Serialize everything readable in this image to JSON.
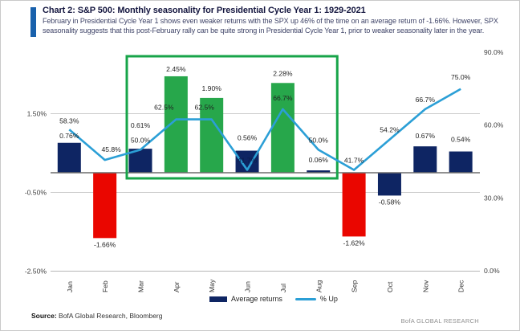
{
  "header": {
    "title": "Chart 2: S&P 500: Monthly seasonality for Presidential Cycle Year 1: 1929-2021",
    "subtitle": "February in Presidential Cycle Year 1 shows even weaker returns with the SPX up 46% of the time on an average return of -1.66%. However, SPX seasonality suggests that this post-February rally can be quite strong in Presidential Cycle Year 1, prior to weaker seasonality later in the year."
  },
  "chart_data": {
    "type": "combo",
    "title": "S&P 500: Monthly seasonality for Presidential Cycle Year 1: 1929-2021",
    "categories": [
      "Jan",
      "Feb",
      "Mar",
      "Apr",
      "May",
      "Jun",
      "Jul",
      "Aug",
      "Sep",
      "Oct",
      "Nov",
      "Dec"
    ],
    "series": [
      {
        "name": "Average returns",
        "chart_type": "bar",
        "axis": "left",
        "unit": "%",
        "values": [
          0.76,
          -1.66,
          0.61,
          2.45,
          1.9,
          0.56,
          2.28,
          0.06,
          -1.62,
          -0.58,
          0.67,
          0.54
        ],
        "labels": [
          "0.76%",
          "-1.66%",
          "0.61%",
          "2.45%",
          "1.90%",
          "0.56%",
          "2.28%",
          "0.06%",
          "-1.62%",
          "-0.58%",
          "0.67%",
          "0.54%"
        ],
        "bar_colors": [
          "navy",
          "red",
          "navy",
          "green",
          "green",
          "navy",
          "green",
          "navy",
          "red",
          "navy",
          "navy",
          "navy"
        ]
      },
      {
        "name": "% Up",
        "chart_type": "line",
        "axis": "right",
        "unit": "%",
        "values": [
          58.3,
          45.8,
          50.0,
          62.5,
          62.5,
          41.7,
          66.7,
          50.0,
          41.7,
          54.2,
          66.7,
          75.0
        ],
        "labels": [
          "58.3%",
          "45.8%",
          "50.0%",
          "62.5%",
          "62.5%",
          "41.7%",
          "66.7%",
          "50.0%",
          "41.7%",
          "54.2%",
          "66.7%",
          "75.0%"
        ]
      }
    ],
    "left_axis": {
      "ticks": [
        "1.50%",
        "-0.50%",
        "-2.50%"
      ],
      "tick_values": [
        1.5,
        -0.5,
        -2.5
      ],
      "range": [
        -2.5,
        3.5
      ],
      "grid": true
    },
    "right_axis": {
      "ticks": [
        "90.0%",
        "60.0%",
        "30.0%",
        "0.0%"
      ],
      "tick_values": [
        90,
        60,
        30,
        0
      ],
      "range": [
        0,
        90
      ]
    },
    "highlight_box": {
      "from": "Mar",
      "to": "Aug"
    },
    "legend": {
      "position": "bottom-center",
      "items": [
        {
          "label": "Average returns",
          "swatch": "bar"
        },
        {
          "label": "% Up",
          "swatch": "line"
        }
      ]
    }
  },
  "colors": {
    "navy": "#0e2563",
    "red": "#ea0600",
    "green": "#27a74b",
    "line_blue": "#2b9fd6",
    "highlight_green": "#17a449",
    "accent_blue": "#1961ac",
    "grid": "#cbcbcb",
    "zero_line": "#6d6d6d",
    "axis_text": "#3d3d3d",
    "label_text": "#1f1f1f"
  },
  "footer": {
    "source_label": "Source:",
    "source_text": "BofA Global Research, Bloomberg",
    "brand": "BofA GLOBAL RESEARCH"
  }
}
